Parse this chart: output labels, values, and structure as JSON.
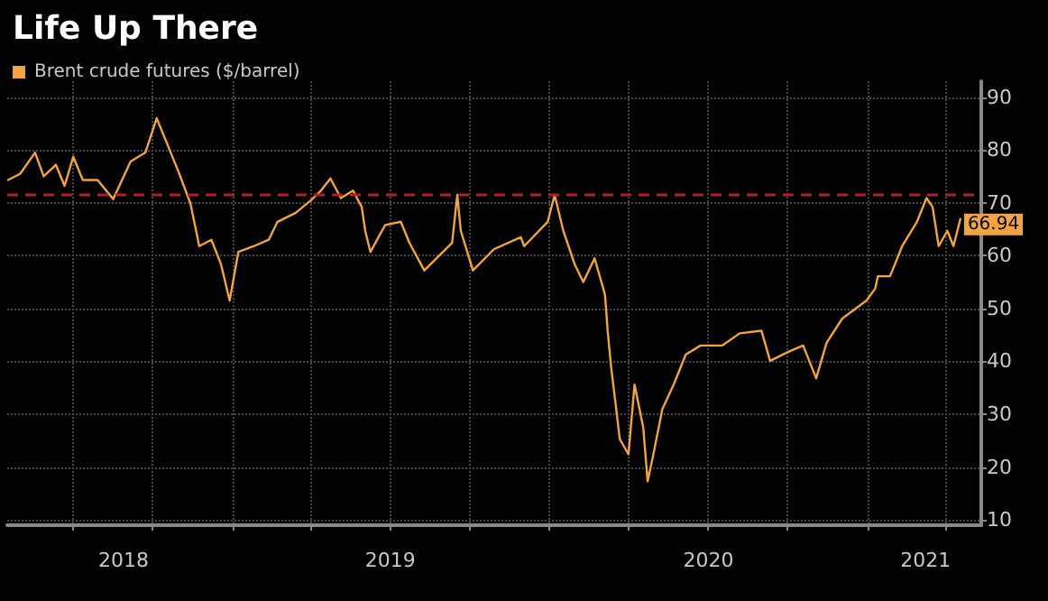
{
  "chart_data": {
    "type": "line",
    "title": "Life Up There",
    "x": [
      "2018-04-18",
      "2018-05-02",
      "2018-05-19",
      "2018-05-29",
      "2018-06-12",
      "2018-06-22",
      "2018-07-02",
      "2018-07-13",
      "2018-07-30",
      "2018-08-17",
      "2018-09-06",
      "2018-09-23",
      "2018-10-06",
      "2018-10-18",
      "2018-11-01",
      "2018-11-14",
      "2018-11-24",
      "2018-12-08",
      "2018-12-19",
      "2018-12-29",
      "2019-01-08",
      "2019-01-26",
      "2019-02-12",
      "2019-02-22",
      "2019-03-15",
      "2019-04-01",
      "2019-04-12",
      "2019-04-24",
      "2019-05-06",
      "2019-05-20",
      "2019-05-30",
      "2019-06-03",
      "2019-06-09",
      "2019-06-26",
      "2019-07-14",
      "2019-07-24",
      "2019-08-10",
      "2019-09-11",
      "2019-09-17",
      "2019-09-21",
      "2019-10-05",
      "2019-10-29",
      "2019-11-29",
      "2019-12-03",
      "2019-12-30",
      "2020-01-07",
      "2020-01-17",
      "2020-01-30",
      "2020-02-09",
      "2020-02-22",
      "2020-03-05",
      "2020-03-08",
      "2020-03-12",
      "2020-03-22",
      "2020-04-01",
      "2020-04-08",
      "2020-04-18",
      "2020-04-23",
      "2020-04-29",
      "2020-05-10",
      "2020-05-23",
      "2020-06-06",
      "2020-06-23",
      "2020-07-18",
      "2020-08-07",
      "2020-09-01",
      "2020-09-11",
      "2020-10-02",
      "2020-10-19",
      "2020-11-03",
      "2020-11-15",
      "2020-12-03",
      "2020-12-31",
      "2021-01-10",
      "2021-01-13",
      "2021-01-27",
      "2021-02-10",
      "2021-02-27",
      "2021-03-10",
      "2021-03-17",
      "2021-03-24",
      "2021-04-03",
      "2021-04-10",
      "2021-04-18"
    ],
    "series": [
      {
        "name": "Brent crude futures ($/barrel)",
        "color": "#f2a444",
        "values": [
          74.3,
          75.5,
          79.5,
          75,
          77.2,
          73.2,
          78.7,
          74.3,
          74.3,
          70.7,
          77.8,
          79.5,
          86,
          81.2,
          75.5,
          69.8,
          61.8,
          63,
          58.4,
          51.5,
          60.7,
          61.8,
          63,
          66.4,
          68.1,
          70.4,
          72.1,
          74.6,
          70.9,
          72.3,
          69.2,
          64.7,
          60.7,
          65.8,
          66.4,
          62.4,
          57.2,
          62.4,
          71.5,
          64.7,
          57.2,
          61.2,
          63.5,
          61.8,
          66.4,
          71.5,
          64.7,
          58.4,
          55,
          59.5,
          52.6,
          45.8,
          39,
          25.3,
          22.4,
          35.6,
          27.5,
          17.3,
          21.9,
          31,
          35.6,
          41.3,
          43,
          43,
          45.3,
          45.8,
          40.1,
          41.8,
          43,
          36.8,
          43.5,
          48.1,
          51.5,
          53.8,
          56.1,
          56.1,
          61.8,
          66.4,
          70.9,
          69.2,
          61.8,
          64.7,
          61.8,
          66.94
        ],
        "value_labels": [
          null,
          null,
          null,
          null,
          null,
          null,
          null,
          null,
          null,
          null,
          null,
          null,
          null,
          null,
          null,
          null,
          null,
          null,
          null,
          null,
          null,
          null,
          null,
          null,
          null,
          null,
          null,
          null,
          null,
          null,
          null,
          null,
          null,
          null,
          null,
          null,
          null,
          null,
          null,
          null,
          null,
          null,
          null,
          null,
          null,
          null,
          null,
          null,
          null,
          null,
          null,
          null,
          null,
          null,
          null,
          null,
          null,
          null,
          null,
          null,
          null,
          null,
          null,
          null,
          null,
          null,
          null,
          null,
          null,
          null,
          null,
          null,
          null,
          null,
          null,
          null,
          null,
          null,
          null,
          null,
          null,
          null,
          null,
          "66.94"
        ]
      }
    ],
    "xlim": [
      "2018-04-17",
      "2021-05-12"
    ],
    "xticks": [
      {
        "value": "2018-07-01",
        "label": null
      },
      {
        "value": "2018-08-29",
        "label": "2018"
      },
      {
        "value": "2018-10-01",
        "label": null
      },
      {
        "value": "2019-01-01",
        "label": null
      },
      {
        "value": "2019-04-01",
        "label": null
      },
      {
        "value": "2019-07-01",
        "label": null
      },
      {
        "value": "2019-07-02",
        "label": "2019"
      },
      {
        "value": "2019-10-01",
        "label": null
      },
      {
        "value": "2020-01-01",
        "label": null
      },
      {
        "value": "2020-04-01",
        "label": null
      },
      {
        "value": "2020-07-01",
        "label": null
      },
      {
        "value": "2020-07-02",
        "label": "2020"
      },
      {
        "value": "2020-10-01",
        "label": null
      },
      {
        "value": "2021-01-01",
        "label": null
      },
      {
        "value": "2021-03-09",
        "label": "2021"
      },
      {
        "value": "2021-04-01",
        "label": null
      }
    ],
    "ylim": [
      9,
      93
    ],
    "yticks": [
      10,
      20,
      30,
      40,
      50,
      60,
      70,
      80,
      90
    ],
    "ref_lines": [
      {
        "axis": "y",
        "value": 71.5,
        "label": null,
        "color": "#a8202e",
        "line_style": "dashed"
      }
    ],
    "grid": true,
    "legend": "top left"
  }
}
